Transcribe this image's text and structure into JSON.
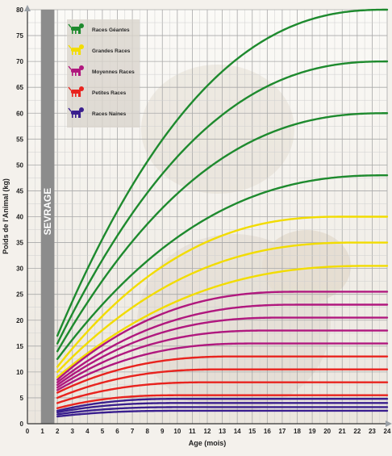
{
  "chart_data": {
    "type": "line",
    "xlabel": "Age (mois)",
    "ylabel": "Poids de l'Animal (kg)",
    "x_ticks": [
      0,
      1,
      2,
      3,
      4,
      5,
      6,
      7,
      8,
      9,
      10,
      11,
      12,
      13,
      14,
      15,
      16,
      17,
      18,
      19,
      20,
      21,
      22,
      23,
      24
    ],
    "y_ticks": [
      0,
      5,
      10,
      15,
      20,
      25,
      30,
      35,
      40,
      45,
      50,
      55,
      60,
      65,
      70,
      75,
      80
    ],
    "xlim": [
      0,
      24
    ],
    "ylim": [
      0,
      80
    ],
    "grid": true,
    "weaning_label": "SEVRAGE",
    "weaning_range_months": [
      0.9,
      1.8
    ],
    "legend_position": "top-left",
    "legend": [
      {
        "name": "Races Géantes",
        "color": "#1e8a2e",
        "icon": "dog-icon"
      },
      {
        "name": "Grandes Races",
        "color": "#f2dc00",
        "icon": "dog-icon"
      },
      {
        "name": "Moyennes Races",
        "color": "#b0187e",
        "icon": "dog-icon"
      },
      {
        "name": "Petites Races",
        "color": "#e8231e",
        "icon": "dog-icon"
      },
      {
        "name": "Races Naines",
        "color": "#3a1f8e",
        "icon": "dog-icon"
      }
    ],
    "curve_start_month": 2,
    "series": [
      {
        "group": "Races Géantes",
        "color": "#1e8a2e",
        "start": 17,
        "end": 80,
        "plateau_month": 24
      },
      {
        "group": "Races Géantes",
        "color": "#1e8a2e",
        "start": 15.5,
        "end": 70,
        "plateau_month": 24
      },
      {
        "group": "Races Géantes",
        "color": "#1e8a2e",
        "start": 14,
        "end": 60,
        "plateau_month": 24
      },
      {
        "group": "Races Géantes",
        "color": "#1e8a2e",
        "start": 12.5,
        "end": 48,
        "plateau_month": 24
      },
      {
        "group": "Grandes Races",
        "color": "#f2dc00",
        "start": 11,
        "end": 40,
        "plateau_month": 21
      },
      {
        "group": "Grandes Races",
        "color": "#f2dc00",
        "start": 10,
        "end": 35,
        "plateau_month": 22
      },
      {
        "group": "Grandes Races",
        "color": "#f2dc00",
        "start": 9,
        "end": 30.5,
        "plateau_month": 23
      },
      {
        "group": "Moyennes Races",
        "color": "#b0187e",
        "start": 8.5,
        "end": 25.5,
        "plateau_month": 18
      },
      {
        "group": "Moyennes Races",
        "color": "#b0187e",
        "start": 8,
        "end": 23,
        "plateau_month": 18
      },
      {
        "group": "Moyennes Races",
        "color": "#b0187e",
        "start": 7.5,
        "end": 20.5,
        "plateau_month": 17
      },
      {
        "group": "Moyennes Races",
        "color": "#b0187e",
        "start": 7,
        "end": 18,
        "plateau_month": 16
      },
      {
        "group": "Moyennes Races",
        "color": "#b0187e",
        "start": 6.5,
        "end": 15.5,
        "plateau_month": 15
      },
      {
        "group": "Petites Races",
        "color": "#e8231e",
        "start": 6,
        "end": 13,
        "plateau_month": 14
      },
      {
        "group": "Petites Races",
        "color": "#e8231e",
        "start": 5,
        "end": 10.5,
        "plateau_month": 13
      },
      {
        "group": "Petites Races",
        "color": "#e8231e",
        "start": 4,
        "end": 8,
        "plateau_month": 12
      },
      {
        "group": "Petites Races",
        "color": "#e8231e",
        "start": 3,
        "end": 5.5,
        "plateau_month": 10
      },
      {
        "group": "Races Naines",
        "color": "#3a1f8e",
        "start": 2.5,
        "end": 4.8,
        "plateau_month": 10
      },
      {
        "group": "Races Naines",
        "color": "#3a1f8e",
        "start": 2.2,
        "end": 4,
        "plateau_month": 10
      },
      {
        "group": "Races Naines",
        "color": "#3a1f8e",
        "start": 1.8,
        "end": 3.2,
        "plateau_month": 10
      },
      {
        "group": "Races Naines",
        "color": "#3a1f8e",
        "start": 1.4,
        "end": 2.5,
        "plateau_month": 10
      }
    ]
  }
}
